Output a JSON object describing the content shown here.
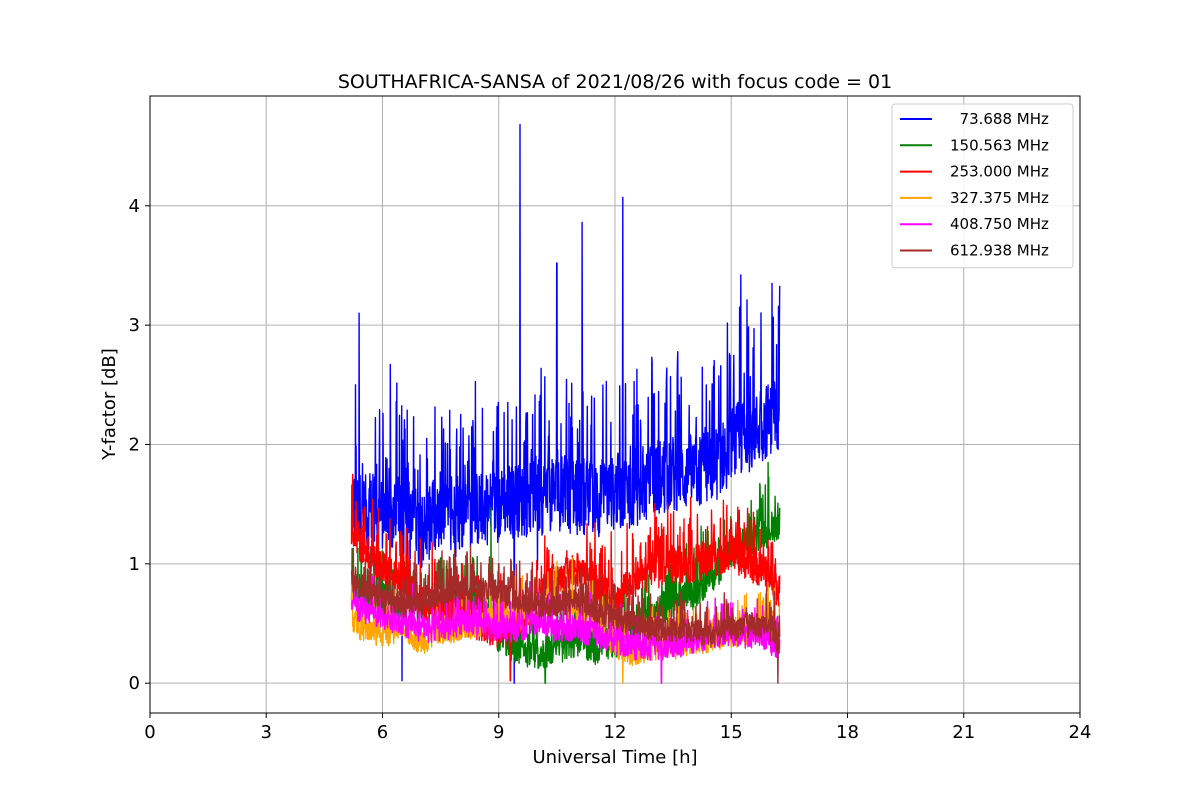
{
  "chart_data": {
    "type": "line",
    "title": "SOUTHAFRICA-SANSA of 2021/08/26 with focus code = 01",
    "xlabel": "Universal Time [h]",
    "ylabel": "Y-factor [dB]",
    "xlim": [
      0,
      24
    ],
    "ylim": [
      -0.25,
      4.92
    ],
    "xticks": [
      0,
      3,
      6,
      9,
      12,
      15,
      18,
      21,
      24
    ],
    "yticks": [
      0,
      1,
      2,
      3,
      4
    ],
    "grid": true,
    "legend_position": "top-right",
    "series": [
      {
        "name": "  73.688 MHz",
        "color": "#0000ff",
        "x": [
          5.2,
          5.5,
          6.0,
          6.5,
          7.0,
          7.5,
          8.0,
          8.5,
          9.0,
          9.5,
          10.0,
          10.5,
          11.0,
          11.5,
          12.0,
          12.5,
          13.0,
          13.5,
          14.0,
          14.5,
          15.0,
          15.5,
          16.0,
          16.25
        ],
        "baseline": [
          1.5,
          1.45,
          1.4,
          1.35,
          1.3,
          1.35,
          1.4,
          1.45,
          1.5,
          1.55,
          1.55,
          1.6,
          1.55,
          1.55,
          1.6,
          1.6,
          1.7,
          1.75,
          1.75,
          1.8,
          2.0,
          2.1,
          2.2,
          2.3
        ],
        "noise": 0.45,
        "peaks": [
          [
            5.3,
            2.5
          ],
          [
            5.4,
            3.1
          ],
          [
            6.2,
            2.67
          ],
          [
            9.55,
            4.68
          ],
          [
            10.5,
            3.52
          ],
          [
            11.15,
            3.86
          ],
          [
            12.2,
            4.07
          ],
          [
            15.25,
            3.42
          ],
          [
            16.05,
            3.35
          ],
          [
            16.25,
            3.33
          ]
        ],
        "dips": [
          [
            6.5,
            0.02
          ],
          [
            9.4,
            0.0
          ],
          [
            10.0,
            0.95
          ]
        ]
      },
      {
        "name": "150.563 MHz",
        "color": "#008000",
        "x": [
          5.2,
          5.5,
          6.0,
          6.5,
          7.0,
          7.5,
          8.0,
          8.5,
          9.0,
          9.5,
          10.0,
          10.5,
          11.0,
          11.5,
          12.0,
          12.5,
          13.0,
          13.5,
          14.0,
          14.5,
          15.0,
          15.5,
          16.0,
          16.25
        ],
        "baseline": [
          0.8,
          0.75,
          0.7,
          0.65,
          0.65,
          0.7,
          0.7,
          0.65,
          0.4,
          0.3,
          0.25,
          0.3,
          0.35,
          0.3,
          0.35,
          0.4,
          0.55,
          0.7,
          0.75,
          0.9,
          1.1,
          1.2,
          1.3,
          1.35
        ],
        "noise": 0.2,
        "peaks": [
          [
            7.5,
            1.05
          ],
          [
            8.8,
            1.47
          ],
          [
            15.95,
            1.85
          ]
        ],
        "dips": [
          [
            10.2,
            0.0
          ]
        ]
      },
      {
        "name": "253.000 MHz",
        "color": "#ff0000",
        "x": [
          5.2,
          5.5,
          6.0,
          6.5,
          7.0,
          7.5,
          8.0,
          8.5,
          9.0,
          9.5,
          10.0,
          10.5,
          11.0,
          11.5,
          12.0,
          12.5,
          13.0,
          13.5,
          14.0,
          14.5,
          15.0,
          15.5,
          16.0,
          16.25
        ],
        "baseline": [
          1.25,
          1.15,
          0.95,
          0.85,
          0.7,
          0.6,
          0.55,
          0.5,
          0.45,
          0.5,
          0.7,
          0.85,
          0.95,
          0.8,
          0.7,
          0.85,
          0.95,
          1.0,
          1.0,
          1.05,
          1.1,
          1.0,
          0.9,
          0.75
        ],
        "noise": 0.22,
        "peaks": [
          [
            5.3,
            1.45
          ],
          [
            14.5,
            1.3
          ]
        ],
        "dips": [
          [
            9.3,
            0.02
          ]
        ]
      },
      {
        "name": "327.375 MHz",
        "color": "#ffa500",
        "x": [
          5.2,
          5.5,
          6.0,
          6.5,
          7.0,
          7.5,
          8.0,
          8.5,
          9.0,
          9.5,
          10.0,
          10.5,
          11.0,
          11.5,
          12.0,
          12.5,
          13.0,
          13.5,
          14.0,
          14.5,
          15.0,
          15.5,
          16.0,
          16.25
        ],
        "baseline": [
          0.55,
          0.45,
          0.4,
          0.45,
          0.35,
          0.4,
          0.45,
          0.5,
          0.55,
          0.6,
          0.65,
          0.7,
          0.6,
          0.5,
          0.3,
          0.25,
          0.3,
          0.3,
          0.35,
          0.35,
          0.4,
          0.4,
          0.45,
          0.45
        ],
        "noise": 0.15,
        "peaks": [
          [
            10.9,
            1.05
          ]
        ],
        "dips": [
          [
            12.2,
            0.0
          ]
        ]
      },
      {
        "name": "408.750 MHz",
        "color": "#ff00ff",
        "x": [
          5.2,
          5.5,
          6.0,
          6.5,
          7.0,
          7.5,
          8.0,
          8.5,
          9.0,
          9.5,
          10.0,
          10.5,
          11.0,
          11.5,
          12.0,
          12.5,
          13.0,
          13.5,
          14.0,
          14.5,
          15.0,
          15.5,
          16.0,
          16.25
        ],
        "baseline": [
          0.65,
          0.6,
          0.55,
          0.5,
          0.45,
          0.45,
          0.5,
          0.5,
          0.45,
          0.45,
          0.5,
          0.45,
          0.45,
          0.4,
          0.35,
          0.3,
          0.3,
          0.3,
          0.35,
          0.4,
          0.4,
          0.4,
          0.35,
          0.3
        ],
        "noise": 0.15,
        "peaks": [
          [
            9.8,
            0.85
          ]
        ],
        "dips": [
          [
            13.2,
            0.0
          ]
        ]
      },
      {
        "name": "612.938 MHz",
        "color": "#a52a2a",
        "x": [
          5.2,
          5.5,
          6.0,
          6.5,
          7.0,
          7.5,
          8.0,
          8.5,
          9.0,
          9.5,
          10.0,
          10.5,
          11.0,
          11.5,
          12.0,
          12.5,
          13.0,
          13.5,
          14.0,
          14.5,
          15.0,
          15.5,
          16.0,
          16.25
        ],
        "baseline": [
          0.85,
          0.8,
          0.7,
          0.65,
          0.7,
          0.75,
          0.8,
          0.8,
          0.75,
          0.7,
          0.65,
          0.65,
          0.7,
          0.6,
          0.55,
          0.5,
          0.45,
          0.45,
          0.45,
          0.4,
          0.45,
          0.5,
          0.45,
          0.35
        ],
        "noise": 0.15,
        "peaks": [
          [
            9.0,
            1.0
          ]
        ],
        "dips": [
          [
            16.2,
            0.0
          ]
        ]
      }
    ]
  }
}
